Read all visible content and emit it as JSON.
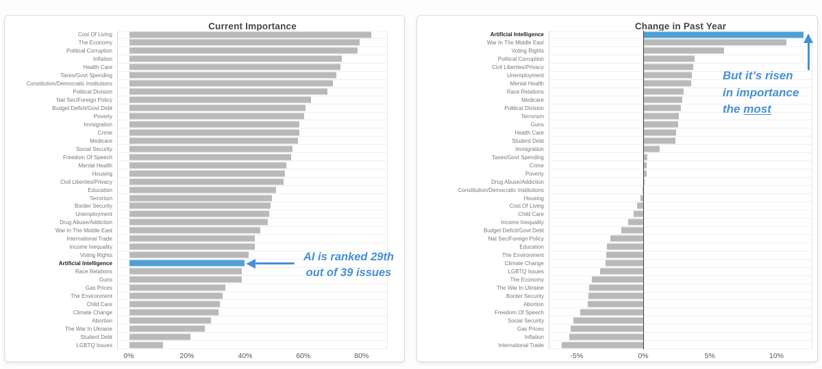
{
  "colors": {
    "bar_gray": "#b9b9b9",
    "highlight_blue": "#4ea0d5",
    "annotation_blue": "#4590d5"
  },
  "annotations": {
    "left": {
      "line1": "AI is ranked 29th",
      "line2": "out of 39 issues"
    },
    "right": {
      "line1": "But it’s risen",
      "line2": "in importance",
      "line3_prefix": "the ",
      "line3_underlined": "most"
    }
  },
  "chart_data": [
    {
      "type": "bar",
      "orientation": "horizontal",
      "title": "Current Importance",
      "xlabel": "",
      "ylabel": "",
      "xlim": [
        0,
        89
      ],
      "grid": "rows",
      "zero_line": false,
      "xticks": [
        "0%",
        "20%",
        "40%",
        "60%",
        "80%"
      ],
      "xtick_values": [
        0,
        20,
        40,
        60,
        80
      ],
      "highlight_category": "Artificial Intelligence",
      "categories": [
        "Cost Of Living",
        "The Economy",
        "Political Corruption",
        "Inflation",
        "Health Care",
        "Taxes/Govt Spending",
        "Constitution/Democratic Institutions",
        "Political Division",
        "Nat Sec/Foreign Policy",
        "Budget Deficit/Govt Debt",
        "Poverty",
        "Immigration",
        "Crime",
        "Medicare",
        "Social Security",
        "Freedom Of Speech",
        "Mental Health",
        "Housing",
        "Civil Liberties/Privacy",
        "Education",
        "Terrorism",
        "Border Security",
        "Unemployment",
        "Drug Abuse/Addiction",
        "War In The Middle East",
        "International Trade",
        "Income Inequality",
        "Voting Rights",
        "Artificial Intelligence",
        "Race Relations",
        "Guns",
        "Gas Prices",
        "The Environment",
        "Child Care",
        "Climate Change",
        "Abortion",
        "The War In Ukraine",
        "Student Debt",
        "LGBTQ Issues"
      ],
      "values": [
        83,
        79,
        78.5,
        73,
        72.5,
        71,
        70,
        68,
        62.5,
        60.5,
        60,
        58.5,
        58.4,
        58,
        56,
        55.5,
        54,
        53.5,
        53,
        50.5,
        49,
        48.5,
        48,
        47.5,
        45,
        43.2,
        43,
        41,
        39.5,
        38.6,
        38.5,
        33,
        32,
        31,
        30.5,
        28,
        26,
        21,
        11.5
      ]
    },
    {
      "type": "bar",
      "orientation": "horizontal",
      "title": "Change in Past Year",
      "xlabel": "",
      "ylabel": "",
      "xlim": [
        -7.1,
        12.7
      ],
      "grid": "rows",
      "zero_line": true,
      "xticks": [
        "-5%",
        "0%",
        "5%",
        "10%"
      ],
      "xtick_values": [
        -5,
        0,
        5,
        10
      ],
      "highlight_category": "Artificial Intelligence",
      "categories": [
        "Artificial Intelligence",
        "War In The Middle East",
        "Voting Rights",
        "Political Corruption",
        "Civil Liberties/Privacy",
        "Unemployment",
        "Mental Health",
        "Race Relations",
        "Medicare",
        "Political Division",
        "Terrorism",
        "Guns",
        "Health Care",
        "Student Debt",
        "Immigration",
        "Taxes/Govt Spending",
        "Crime",
        "Poverty",
        "Drug Abuse/Addiction",
        "Constitution/Democratic Institutions",
        "Housing",
        "Cost Of Living",
        "Child Care",
        "Income Inequality",
        "Budget Deficit/Govt Debt",
        "Nat Sec/Foreign Policy",
        "Education",
        "The Environment",
        "Climate Change",
        "LGBTQ Issues",
        "The Economy",
        "The War In Ukraine",
        "Border Security",
        "Abortion",
        "Freedom Of Speech",
        "Social Security",
        "Gas Prices",
        "Inflation",
        "International Trade"
      ],
      "values": [
        12,
        10.7,
        6,
        3.8,
        3.7,
        3.6,
        3.55,
        3,
        2.9,
        2.8,
        2.6,
        2.55,
        2.4,
        2.35,
        1.2,
        0.25,
        0.2,
        0.2,
        0.05,
        -0.1,
        -0.25,
        -0.5,
        -0.75,
        -1.2,
        -1.7,
        -2.5,
        -2.8,
        -2.85,
        -2.9,
        -3.3,
        -3.9,
        -4.1,
        -4.15,
        -4.2,
        -4.8,
        -5.3,
        -5.5,
        -5.6,
        -6.2
      ]
    }
  ]
}
